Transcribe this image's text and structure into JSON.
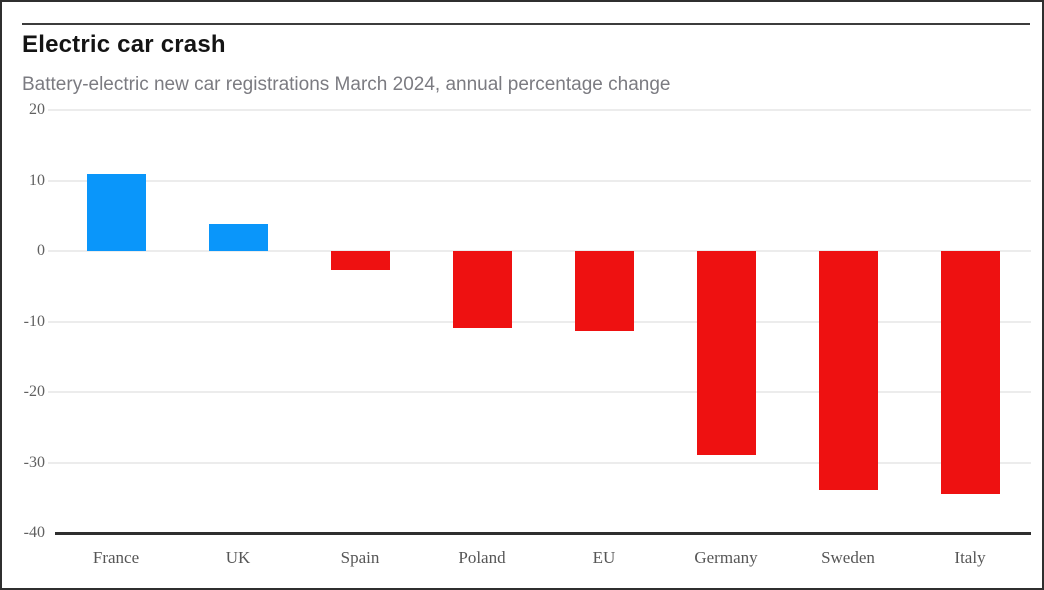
{
  "header": {
    "title": "Electric car crash",
    "subtitle": "Battery-electric new car registrations March 2024, annual percentage change"
  },
  "chart_data": {
    "type": "bar",
    "title": "Electric car crash",
    "subtitle": "Battery-electric new car registrations March 2024, annual percentage change",
    "categories": [
      "France",
      "UK",
      "Spain",
      "Poland",
      "EU",
      "Germany",
      "Sweden",
      "Italy"
    ],
    "values": [
      10.9,
      3.8,
      -2.7,
      -10.9,
      -11.3,
      -28.9,
      -33.9,
      -34.4
    ],
    "xlabel": "",
    "ylabel": "",
    "ylim": [
      -40,
      20
    ],
    "yticks": [
      20,
      10,
      0,
      -10,
      -20,
      -30,
      -40
    ],
    "grid": true,
    "legend": false,
    "colors": {
      "positive": "#0a96fa",
      "negative": "#ee1111",
      "gridline": "#ececec",
      "axis_line": "#2e2e2e",
      "tick_label": "#606060"
    }
  }
}
